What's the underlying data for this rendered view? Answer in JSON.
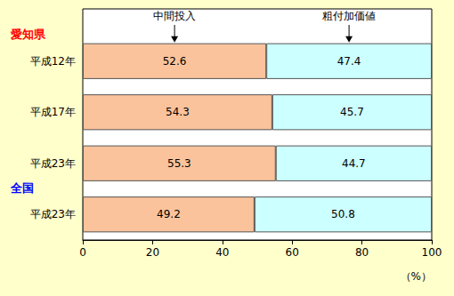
{
  "chart_data": {
    "type": "bar",
    "orientation": "horizontal",
    "stacked": true,
    "data_labels": true,
    "grid": false,
    "groups": [
      {
        "label": "愛知県",
        "color": "#ff0000",
        "categories": [
          "平成12年",
          "平成17年",
          "平成23年"
        ]
      },
      {
        "label": "全国",
        "color": "#0000ff",
        "categories": [
          "平成23年"
        ]
      }
    ],
    "series": [
      {
        "name": "中間投入",
        "color": "#fac39c",
        "values": [
          52.6,
          54.3,
          55.3,
          49.2
        ]
      },
      {
        "name": "粗付加価値",
        "color": "#ccffff",
        "values": [
          47.4,
          45.7,
          44.7,
          50.8
        ]
      }
    ],
    "xlim": [
      0,
      100
    ],
    "xticks": [
      0,
      20,
      40,
      60,
      80,
      100
    ],
    "x_label": "（%）"
  }
}
